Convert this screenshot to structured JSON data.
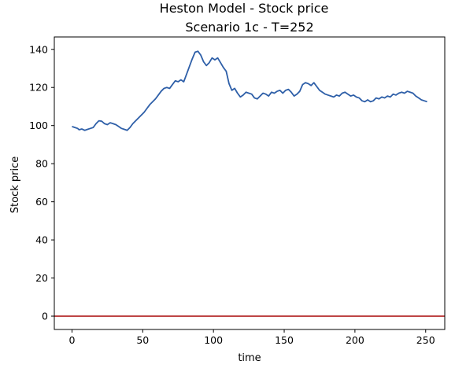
{
  "chart_data": {
    "type": "line",
    "title": "Heston Model - Stock price",
    "subtitle": "Scenario 1c - T=252",
    "xlabel": "time",
    "ylabel": "Stock price",
    "xlim": [
      -12.5,
      263.5
    ],
    "ylim": [
      -7,
      146.5
    ],
    "x_ticks": [
      0,
      50,
      100,
      150,
      200,
      250
    ],
    "x_tick_labels": [
      "0",
      "50",
      "100",
      "150",
      "200",
      "250"
    ],
    "y_ticks": [
      0,
      20,
      40,
      60,
      80,
      100,
      120,
      140
    ],
    "y_tick_labels": [
      "0",
      "20",
      "40",
      "60",
      "80",
      "100",
      "120",
      "140"
    ],
    "grid": false,
    "hline": {
      "y": 0,
      "color": "#b22222"
    },
    "series": [
      {
        "color": "#2e5fa8",
        "points": [
          [
            0,
            99.5
          ],
          [
            2,
            99.0
          ],
          [
            4,
            98.5
          ],
          [
            5,
            97.8
          ],
          [
            7,
            98.2
          ],
          [
            9,
            97.5
          ],
          [
            11,
            98.0
          ],
          [
            13,
            98.5
          ],
          [
            15,
            99.0
          ],
          [
            17,
            101.0
          ],
          [
            19,
            102.5
          ],
          [
            21,
            102.3
          ],
          [
            23,
            101.0
          ],
          [
            25,
            100.5
          ],
          [
            27,
            101.5
          ],
          [
            29,
            101.0
          ],
          [
            31,
            100.5
          ],
          [
            33,
            99.5
          ],
          [
            35,
            98.5
          ],
          [
            37,
            98.0
          ],
          [
            39,
            97.5
          ],
          [
            41,
            99.0
          ],
          [
            43,
            101.0
          ],
          [
            45,
            102.5
          ],
          [
            47,
            104.0
          ],
          [
            49,
            105.5
          ],
          [
            51,
            107.0
          ],
          [
            53,
            109.0
          ],
          [
            55,
            111.0
          ],
          [
            57,
            112.5
          ],
          [
            59,
            114.0
          ],
          [
            61,
            116.0
          ],
          [
            63,
            118.0
          ],
          [
            65,
            119.5
          ],
          [
            67,
            120.0
          ],
          [
            69,
            119.5
          ],
          [
            71,
            121.5
          ],
          [
            73,
            123.5
          ],
          [
            75,
            123.0
          ],
          [
            77,
            124.0
          ],
          [
            79,
            123.0
          ],
          [
            81,
            127.0
          ],
          [
            83,
            131.0
          ],
          [
            85,
            135.0
          ],
          [
            87,
            138.5
          ],
          [
            89,
            139.0
          ],
          [
            91,
            137.0
          ],
          [
            93,
            133.5
          ],
          [
            95,
            131.5
          ],
          [
            97,
            133.0
          ],
          [
            99,
            135.5
          ],
          [
            101,
            134.5
          ],
          [
            103,
            135.5
          ],
          [
            105,
            133.0
          ],
          [
            107,
            130.5
          ],
          [
            109,
            128.5
          ],
          [
            111,
            122.0
          ],
          [
            113,
            118.5
          ],
          [
            115,
            119.5
          ],
          [
            117,
            117.0
          ],
          [
            119,
            115.0
          ],
          [
            121,
            116.0
          ],
          [
            123,
            117.5
          ],
          [
            125,
            117.0
          ],
          [
            127,
            116.5
          ],
          [
            129,
            114.5
          ],
          [
            131,
            114.0
          ],
          [
            133,
            115.5
          ],
          [
            135,
            117.0
          ],
          [
            137,
            116.5
          ],
          [
            139,
            115.5
          ],
          [
            141,
            117.5
          ],
          [
            143,
            117.0
          ],
          [
            145,
            118.0
          ],
          [
            147,
            118.5
          ],
          [
            149,
            117.0
          ],
          [
            151,
            118.5
          ],
          [
            153,
            119.0
          ],
          [
            155,
            117.5
          ],
          [
            157,
            115.5
          ],
          [
            159,
            116.5
          ],
          [
            161,
            118.0
          ],
          [
            163,
            121.5
          ],
          [
            165,
            122.5
          ],
          [
            167,
            122.0
          ],
          [
            169,
            121.0
          ],
          [
            171,
            122.5
          ],
          [
            173,
            120.5
          ],
          [
            175,
            118.5
          ],
          [
            177,
            117.5
          ],
          [
            179,
            116.5
          ],
          [
            181,
            116.0
          ],
          [
            183,
            115.5
          ],
          [
            185,
            115.0
          ],
          [
            187,
            116.0
          ],
          [
            189,
            115.5
          ],
          [
            191,
            117.0
          ],
          [
            193,
            117.5
          ],
          [
            195,
            116.5
          ],
          [
            197,
            115.5
          ],
          [
            199,
            116.0
          ],
          [
            201,
            115.0
          ],
          [
            203,
            114.5
          ],
          [
            205,
            113.0
          ],
          [
            207,
            112.5
          ],
          [
            209,
            113.5
          ],
          [
            211,
            112.5
          ],
          [
            213,
            113.0
          ],
          [
            215,
            114.5
          ],
          [
            217,
            114.0
          ],
          [
            219,
            115.0
          ],
          [
            221,
            114.5
          ],
          [
            223,
            115.5
          ],
          [
            225,
            115.0
          ],
          [
            227,
            116.5
          ],
          [
            229,
            116.0
          ],
          [
            231,
            117.0
          ],
          [
            233,
            117.5
          ],
          [
            235,
            117.0
          ],
          [
            237,
            118.0
          ],
          [
            239,
            117.5
          ],
          [
            241,
            117.0
          ],
          [
            243,
            115.5
          ],
          [
            245,
            114.5
          ],
          [
            247,
            113.5
          ],
          [
            249,
            113.0
          ],
          [
            251,
            112.5
          ]
        ]
      }
    ]
  }
}
